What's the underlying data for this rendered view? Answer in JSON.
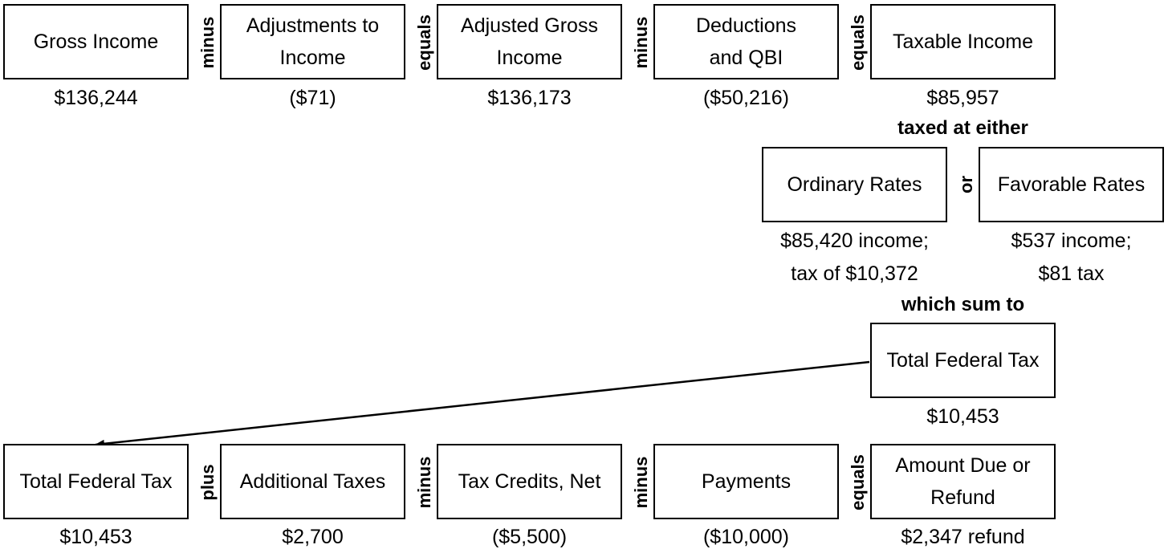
{
  "row1": {
    "boxes": [
      {
        "lines": [
          "Gross Income"
        ],
        "value": "$136,244"
      },
      {
        "lines": [
          "Adjustments to",
          "Income"
        ],
        "value": "($71)"
      },
      {
        "lines": [
          "Adjusted Gross",
          "Income"
        ],
        "value": "$136,173"
      },
      {
        "lines": [
          "Deductions",
          "and QBI"
        ],
        "value": "($50,216)"
      },
      {
        "lines": [
          "Taxable Income"
        ],
        "value": "$85,957"
      }
    ],
    "operators": [
      "minus",
      "equals",
      "minus",
      "equals"
    ]
  },
  "taxed_label": "taxed at either",
  "rates": {
    "ordinary": {
      "label": "Ordinary Rates",
      "value_lines": [
        "$85,420 income;",
        "tax of $10,372"
      ]
    },
    "operator": "or",
    "favorable": {
      "label": "Favorable Rates",
      "value_lines": [
        "$537 income;",
        "$81 tax"
      ]
    }
  },
  "sum_label": "which sum to",
  "total_tax": {
    "label": "Total Federal Tax",
    "value": "$10,453"
  },
  "row2": {
    "boxes": [
      {
        "lines": [
          "Total Federal Tax"
        ],
        "value": "$10,453"
      },
      {
        "lines": [
          "Additional Taxes"
        ],
        "value": "$2,700"
      },
      {
        "lines": [
          "Tax Credits, Net"
        ],
        "value": "($5,500)"
      },
      {
        "lines": [
          "Payments"
        ],
        "value": "($10,000)"
      },
      {
        "lines": [
          "Amount Due or",
          "Refund"
        ],
        "value": "$2,347 refund"
      }
    ],
    "operators": [
      "plus",
      "minus",
      "minus",
      "equals"
    ]
  }
}
